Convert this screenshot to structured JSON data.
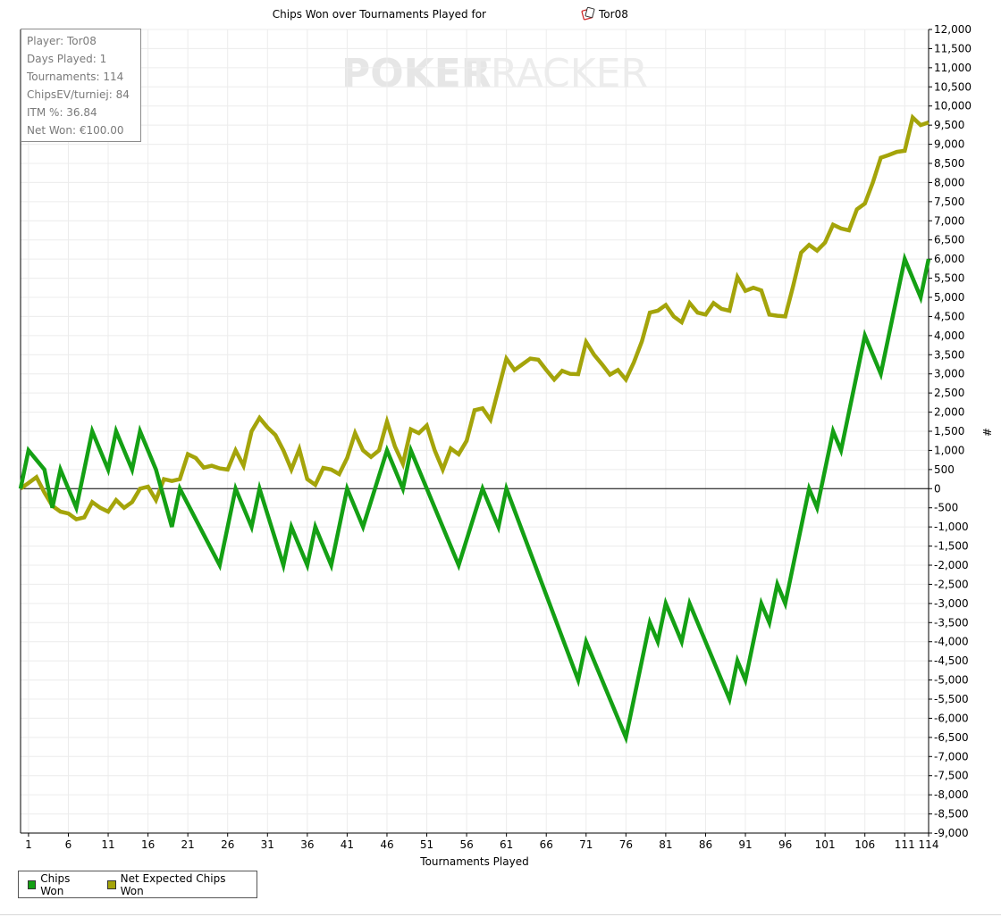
{
  "chart_data": {
    "type": "line",
    "title": "Chips Won over Tournaments Played for",
    "player": "Tor08",
    "xlabel": "Tournaments Played",
    "ylabel": "#",
    "xlim": [
      1,
      114
    ],
    "ylim": [
      -9000,
      12000
    ],
    "x_ticks": [
      "1",
      "6",
      "11",
      "16",
      "21",
      "26",
      "31",
      "36",
      "41",
      "46",
      "51",
      "56",
      "61",
      "66",
      "71",
      "76",
      "81",
      "86",
      "91",
      "96",
      "101",
      "106",
      "111",
      "114"
    ],
    "y_ticks": [
      "12,000",
      "11,500",
      "11,000",
      "10,500",
      "10,000",
      "9,500",
      "9,000",
      "8,500",
      "8,000",
      "7,500",
      "7,000",
      "6,500",
      "6,000",
      "5,500",
      "5,000",
      "4,500",
      "4,000",
      "3,500",
      "3,000",
      "2,500",
      "2,000",
      "1,500",
      "1,000",
      "500",
      "0",
      "-500",
      "-1,000",
      "-1,500",
      "-2,000",
      "-2,500",
      "-3,000",
      "-3,500",
      "-4,000",
      "-4,500",
      "-5,000",
      "-5,500",
      "-6,000",
      "-6,500",
      "-7,000",
      "-7,500",
      "-8,000",
      "-8,500",
      "-9,000"
    ],
    "grid": true,
    "legend_placement": "bottom-left",
    "series": [
      {
        "name": "Chips Won",
        "color": "#14a014",
        "values": [
          0,
          1000,
          500,
          -500,
          500,
          -500,
          1500,
          500,
          1500,
          500,
          1500,
          500,
          -1000,
          0,
          -2000,
          0,
          -1000,
          0,
          -2000,
          -1000,
          -2000,
          -1000,
          -2000,
          0,
          -1000,
          1000,
          0,
          1000,
          -2000,
          0,
          -1000,
          0,
          -5000,
          -4000,
          -6500,
          -3500,
          -4000,
          -3000,
          -4000,
          -3000,
          -5500,
          -4500,
          -5000,
          -3000,
          -3500,
          -2500,
          -3000,
          0,
          -500,
          1500,
          1000,
          4000,
          3000,
          6000,
          5000,
          6000
        ],
        "x": [
          0,
          1,
          3,
          4,
          5,
          7,
          9,
          11,
          12,
          14,
          15,
          17,
          19,
          20,
          25,
          27,
          29,
          30,
          33,
          34,
          36,
          37,
          39,
          41,
          43,
          46,
          48,
          49,
          55,
          58,
          60,
          61,
          70,
          71,
          76,
          79,
          80,
          81,
          83,
          84,
          89,
          90,
          91,
          93,
          94,
          95,
          96,
          99,
          100,
          102,
          103,
          106,
          108,
          111,
          113,
          114
        ]
      },
      {
        "name": "Net Expected Chips Won",
        "color": "#a4a40a",
        "x": [
          0,
          1,
          2,
          3,
          4,
          5,
          6,
          7,
          8,
          9,
          10,
          11,
          12,
          13,
          14,
          15,
          16,
          17,
          18,
          19,
          20,
          21,
          22,
          23,
          24,
          25,
          26,
          27,
          28,
          29,
          30,
          31,
          32,
          33,
          34,
          35,
          36,
          37,
          38,
          39,
          40,
          41,
          42,
          43,
          44,
          45,
          46,
          47,
          48,
          49,
          50,
          51,
          52,
          53,
          54,
          55,
          56,
          57,
          58,
          59,
          60,
          61,
          62,
          63,
          64,
          65,
          66,
          67,
          68,
          69,
          70,
          71,
          72,
          73,
          74,
          75,
          76,
          77,
          78,
          79,
          80,
          81,
          82,
          83,
          84,
          85,
          86,
          87,
          88,
          89,
          90,
          91,
          92,
          93,
          94,
          95,
          96,
          97,
          98,
          99,
          100,
          101,
          102,
          103,
          104,
          105,
          106,
          107,
          108,
          109,
          110,
          111,
          112,
          113,
          114
        ],
        "values": [
          0,
          150,
          300,
          -100,
          -450,
          -600,
          -650,
          -800,
          -750,
          -350,
          -500,
          -600,
          -300,
          -500,
          -350,
          0,
          50,
          -300,
          250,
          200,
          250,
          900,
          800,
          550,
          600,
          530,
          500,
          1000,
          600,
          1500,
          1850,
          1600,
          1400,
          1000,
          500,
          1030,
          250,
          100,
          540,
          500,
          380,
          800,
          1450,
          1000,
          830,
          1000,
          1750,
          1100,
          650,
          1550,
          1450,
          1650,
          1000,
          500,
          1050,
          900,
          1250,
          2050,
          2100,
          1800,
          2600,
          3400,
          3100,
          3250,
          3400,
          3370,
          3100,
          2850,
          3080,
          3000,
          2990,
          3830,
          3500,
          3250,
          2980,
          3100,
          2850,
          3300,
          3850,
          4600,
          4650,
          4800,
          4500,
          4350,
          4850,
          4600,
          4550,
          4850,
          4700,
          4650,
          5530,
          5170,
          5250,
          5180,
          4550,
          4520,
          4500,
          5300,
          6170,
          6370,
          6220,
          6430,
          6900,
          6800,
          6750,
          7300,
          7450,
          8000,
          8650,
          8720,
          8800,
          8830,
          9700,
          9500,
          9570
        ]
      }
    ]
  },
  "info_box": {
    "player": "Player: Tor08",
    "days_played": "Days Played: 1",
    "tournaments": "Tournaments: 114",
    "chips_ev": "ChipsEV/turniej: 84",
    "itm": "ITM %: 36.84",
    "net_won": "Net Won: €100.00"
  },
  "watermark": {
    "part1": "POKER",
    "part2": "TRACKER"
  }
}
